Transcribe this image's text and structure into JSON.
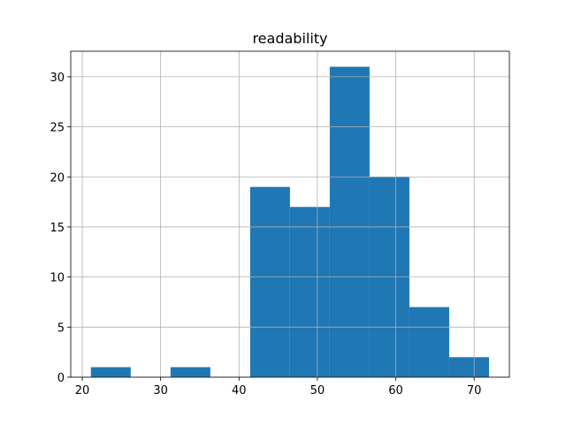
{
  "chart_data": {
    "type": "histogram",
    "title": "readability",
    "bins": [
      21.1,
      26.18,
      31.26,
      36.34,
      41.42,
      46.5,
      51.58,
      56.66,
      61.74,
      66.82,
      71.9
    ],
    "counts": [
      1,
      0,
      1,
      0,
      19,
      17,
      31,
      20,
      7,
      2
    ],
    "color": "#1f77b4",
    "xlim": [
      18.53,
      74.5
    ],
    "xticks": [
      20,
      30,
      40,
      50,
      60,
      70
    ],
    "ylim": [
      0,
      32.55
    ],
    "yticks": [
      0,
      5,
      10,
      15,
      20,
      25,
      30
    ],
    "grid": true
  }
}
